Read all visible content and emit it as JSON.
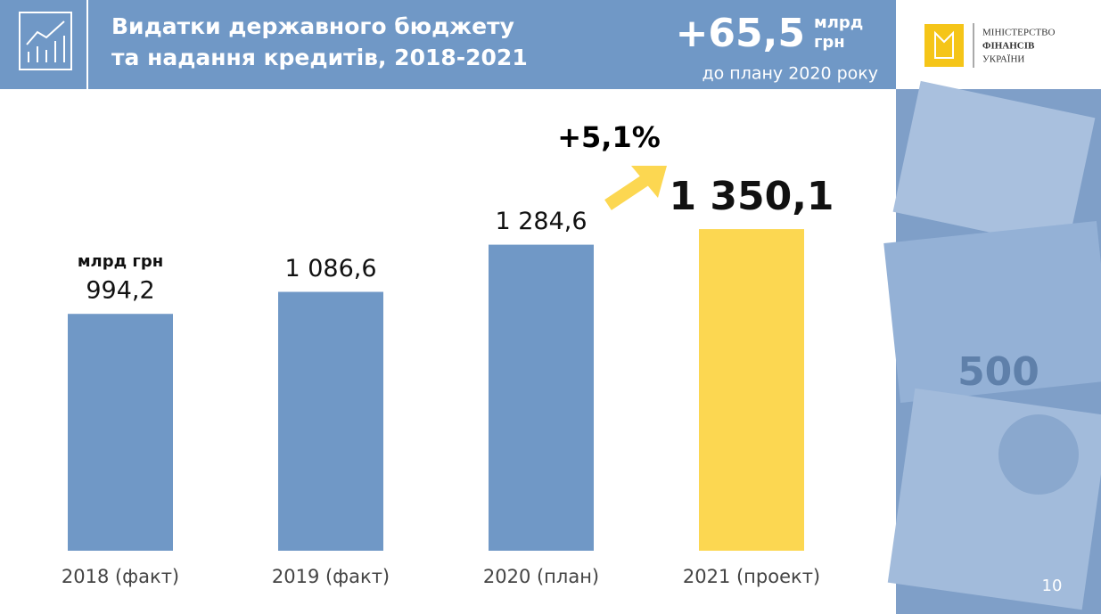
{
  "chart_data": {
    "type": "bar",
    "title_lines": [
      "Видатки державного бюджету",
      "та надання кредитів, 2018-2021"
    ],
    "headline": {
      "value": "+65,5",
      "unit_lines": [
        "млрд",
        "грн"
      ],
      "note": "до плану 2020 року"
    },
    "unit_label": "млрд грн",
    "annotation": "+5,1%",
    "categories": [
      "2018 (факт)",
      "2019 (факт)",
      "2020 (план)",
      "2021 (проект)"
    ],
    "values": [
      994.2,
      1086.6,
      1284.6,
      1350.1
    ],
    "value_labels": [
      "994,2",
      "1 086,6",
      "1 284,6",
      "1 350,1"
    ],
    "colors": [
      "#7098c6",
      "#7098c6",
      "#7098c6",
      "#fcd751"
    ],
    "ylim": [
      0,
      1500
    ]
  },
  "logo": {
    "lines": [
      "МІНІСТЕРСТВО",
      "ФІНАНСІВ",
      "УКРАЇНИ"
    ]
  },
  "page_number": "10"
}
